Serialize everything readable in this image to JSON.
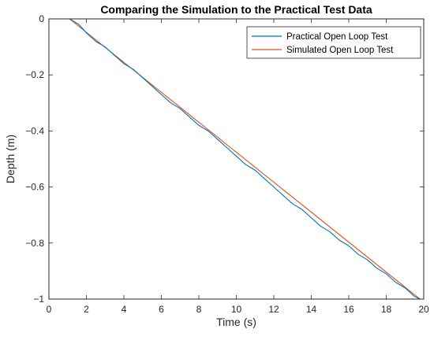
{
  "chart_data": {
    "type": "line",
    "title": "Comparing the Simulation to the Practical Test Data",
    "xlabel": "Time (s)",
    "ylabel": "Depth (m)",
    "xlim": [
      0,
      20
    ],
    "ylim": [
      -1,
      0
    ],
    "xticks": [
      0,
      2,
      4,
      6,
      8,
      10,
      12,
      14,
      16,
      18,
      20
    ],
    "yticks": [
      0,
      -0.2,
      -0.4,
      -0.6,
      -0.8,
      -1
    ],
    "xtick_labels": [
      "0",
      "2",
      "4",
      "6",
      "8",
      "10",
      "12",
      "14",
      "16",
      "18",
      "20"
    ],
    "ytick_labels": [
      "0",
      "−0.2",
      "−0.4",
      "−0.6",
      "−0.8",
      "−1"
    ],
    "grid": false,
    "legend_position": "top-right",
    "series": [
      {
        "name": "Practical Open Loop Test",
        "color": "#0072BD",
        "x": [
          1.1,
          1.6,
          2.0,
          2.5,
          3.0,
          3.5,
          4.0,
          4.5,
          5.0,
          5.5,
          6.0,
          6.5,
          7.0,
          7.5,
          8.0,
          8.5,
          9.0,
          9.5,
          10.0,
          10.5,
          11.0,
          11.5,
          12.0,
          12.5,
          13.0,
          13.5,
          14.0,
          14.5,
          15.0,
          15.5,
          16.0,
          16.5,
          17.0,
          17.5,
          18.0,
          18.5,
          19.0,
          19.5,
          19.8
        ],
        "y": [
          0.0,
          -0.02,
          -0.05,
          -0.08,
          -0.1,
          -0.13,
          -0.16,
          -0.18,
          -0.21,
          -0.24,
          -0.27,
          -0.3,
          -0.32,
          -0.35,
          -0.38,
          -0.4,
          -0.43,
          -0.46,
          -0.49,
          -0.52,
          -0.54,
          -0.57,
          -0.6,
          -0.63,
          -0.66,
          -0.68,
          -0.71,
          -0.74,
          -0.76,
          -0.79,
          -0.81,
          -0.84,
          -0.86,
          -0.89,
          -0.91,
          -0.94,
          -0.96,
          -0.99,
          -1.0
        ]
      },
      {
        "name": "Simulated Open Loop Test",
        "color": "#D95319",
        "x": [
          1.1,
          19.8
        ],
        "y": [
          0.0,
          -1.0
        ]
      }
    ]
  }
}
